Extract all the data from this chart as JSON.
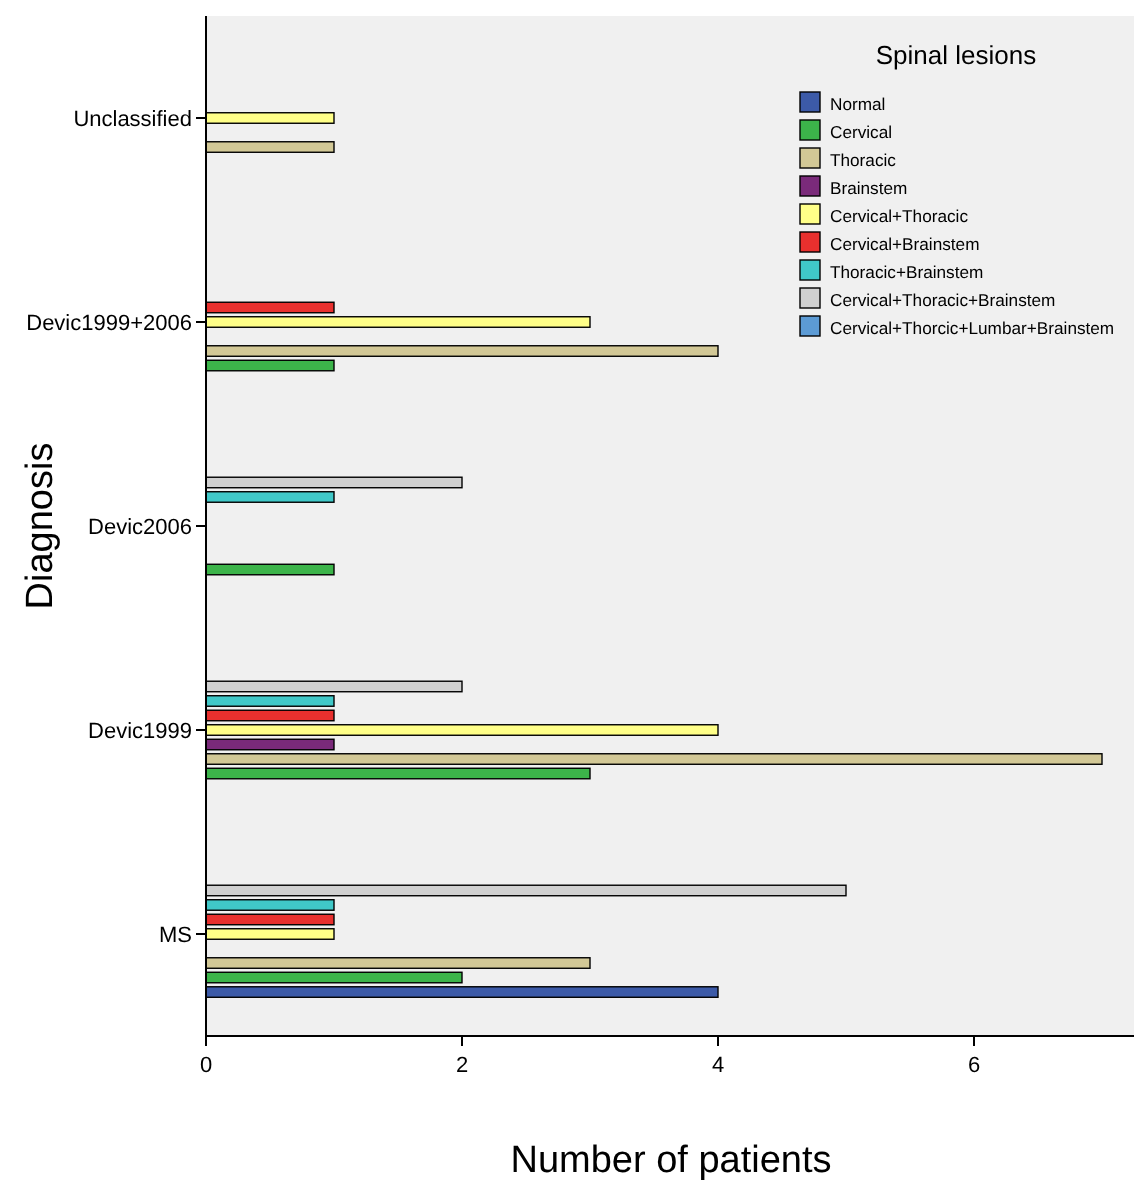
{
  "chart_data": {
    "type": "bar",
    "orientation": "horizontal",
    "xlabel": "Number of patients",
    "ylabel": "Diagnosis",
    "legend_title": "Spinal lesions",
    "legend": "top right",
    "grid": false,
    "categories": [
      "Unclassified",
      "Devic1999+2006",
      "Devic2006",
      "Devic1999",
      "MS"
    ],
    "xlim": [
      0,
      7.25
    ],
    "xticks": [
      0,
      2,
      4,
      6
    ],
    "series": [
      {
        "name": "Normal",
        "color": "#3c5aa8",
        "values": [
          null,
          null,
          null,
          null,
          4
        ]
      },
      {
        "name": "Cervical",
        "color": "#3cb44a",
        "values": [
          null,
          1,
          1,
          3,
          2
        ]
      },
      {
        "name": "Thoracic",
        "color": "#d2c896",
        "values": [
          1,
          4,
          null,
          7,
          3
        ]
      },
      {
        "name": "Brainstem",
        "color": "#7a2a7a",
        "values": [
          null,
          null,
          null,
          1,
          null
        ]
      },
      {
        "name": "Cervical+Thoracic",
        "color": "#ffff88",
        "values": [
          1,
          3,
          null,
          4,
          1
        ]
      },
      {
        "name": "Cervical+Brainstem",
        "color": "#e8302e",
        "values": [
          null,
          1,
          null,
          1,
          1
        ]
      },
      {
        "name": "Thoracic+Brainstem",
        "color": "#40c8c8",
        "values": [
          null,
          null,
          1,
          1,
          1
        ]
      },
      {
        "name": "Cervical+Thoracic+Brainstem",
        "color": "#d0d0d0",
        "values": [
          null,
          null,
          2,
          2,
          5
        ]
      },
      {
        "name": "Cervical+Thorcic+Lumbar+Brainstem",
        "color": "#5c9bd5",
        "values": [
          null,
          null,
          null,
          null,
          null
        ]
      }
    ]
  }
}
